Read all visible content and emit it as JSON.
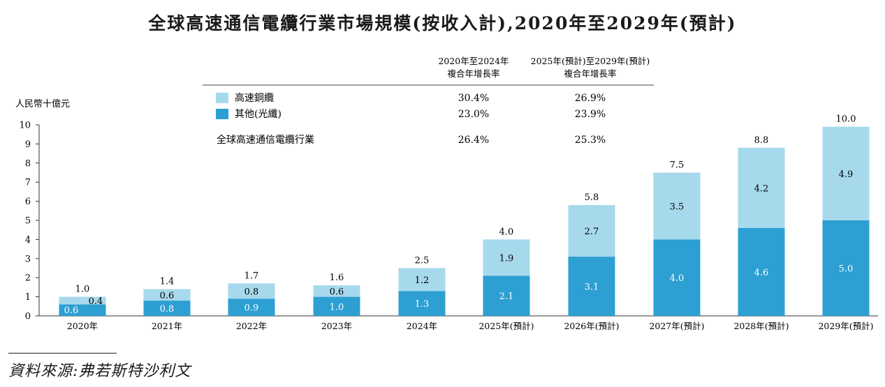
{
  "chart_data": {
    "type": "bar",
    "stacked": true,
    "title": "全球高速通信電纜行業市場規模(按收入計),2020年至2029年(預計)",
    "ylabel": "人民幣十億元",
    "ylim": [
      0,
      10
    ],
    "yticks": [
      "0",
      "1",
      "2",
      "3",
      "4",
      "5",
      "6",
      "7",
      "8",
      "9",
      "10"
    ],
    "categories": [
      "2020年",
      "2021年",
      "2022年",
      "2023年",
      "2024年",
      "2025年(預計)",
      "2026年(預計)",
      "2027年(預計)",
      "2028年(預計)",
      "2029年(預計)"
    ],
    "series": [
      {
        "name": "其他(光纖)",
        "color": "#2d9fd3",
        "values": [
          0.6,
          0.8,
          0.9,
          1.0,
          1.3,
          2.1,
          3.1,
          4.0,
          4.6,
          5.0
        ],
        "labels": [
          "0.6",
          "0.8",
          "0.9",
          "1.0",
          "1.3",
          "2.1",
          "3.1",
          "4.0",
          "4.6",
          "5.0"
        ]
      },
      {
        "name": "高速銅纜",
        "color": "#a7d9ec",
        "values": [
          0.4,
          0.6,
          0.8,
          0.6,
          1.2,
          1.9,
          2.7,
          3.5,
          4.2,
          4.9
        ],
        "labels": [
          "0.4",
          "0.6",
          "0.8",
          "0.6",
          "1.2",
          "1.9",
          "2.7",
          "3.5",
          "4.2",
          "4.9"
        ]
      }
    ],
    "totals": [
      1.0,
      1.4,
      1.7,
      1.6,
      2.5,
      4.0,
      5.8,
      7.5,
      8.8,
      10.0
    ],
    "total_labels": [
      "1.0",
      "1.4",
      "1.7",
      "1.6",
      "2.5",
      "4.0",
      "5.8",
      "7.5",
      "8.8",
      "10.0"
    ],
    "legend": {
      "items": [
        {
          "label": "高速銅纜",
          "color": "#a7d9ec"
        },
        {
          "label": "其他(光纖)",
          "color": "#2d9fd3"
        }
      ]
    },
    "cagr_table": {
      "headers": [
        [
          "2020年至2024年",
          "複合年增長率"
        ],
        [
          "2025年(預計)至2029年(預計)",
          "複合年增長率"
        ]
      ],
      "rows": [
        {
          "label": "高速銅纜",
          "values": [
            "30.4%",
            "26.9%"
          ]
        },
        {
          "label": "其他(光纖)",
          "values": [
            "23.0%",
            "23.9%"
          ]
        },
        {
          "label": "全球高速通信電纜行業",
          "values": [
            "26.4%",
            "25.3%"
          ]
        }
      ]
    }
  },
  "source": "資料來源:弗若斯特沙利文"
}
